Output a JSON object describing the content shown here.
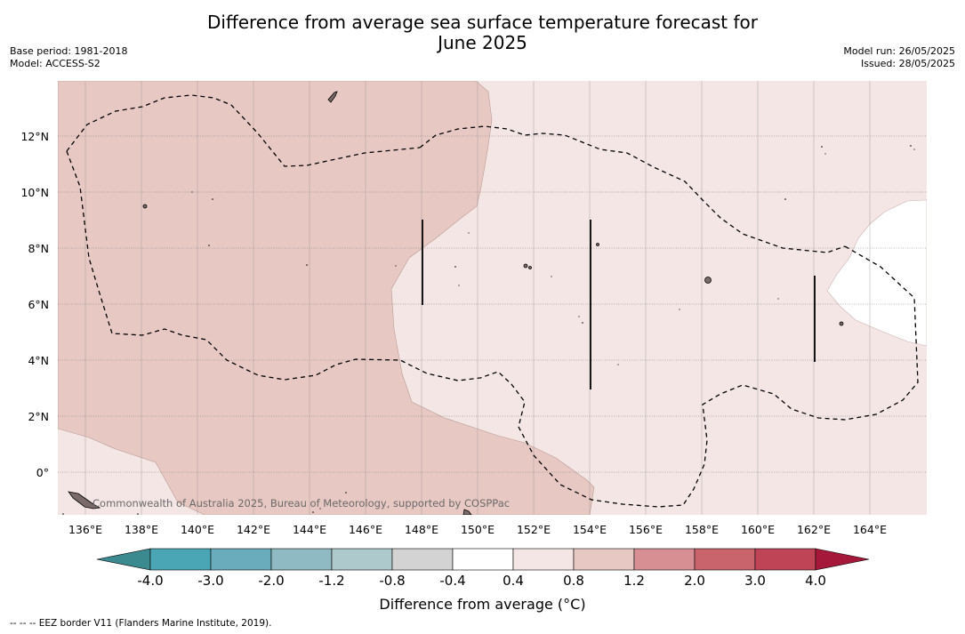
{
  "title": "Difference from average sea surface temperature forecast for June 2025",
  "title_line1": "Difference from average sea surface temperature forecast for",
  "title_line2": "June 2025",
  "meta_left": {
    "base_period": "Base period: 1981-2018",
    "model": "Model: ACCESS-S2"
  },
  "meta_right": {
    "model_run": "Model run: 26/05/2025",
    "issued": "Issued: 28/05/2025"
  },
  "map": {
    "lon_labels": [
      "136°E",
      "138°E",
      "140°E",
      "142°E",
      "144°E",
      "146°E",
      "148°E",
      "150°E",
      "152°E",
      "154°E",
      "156°E",
      "158°E",
      "160°E",
      "162°E",
      "164°E"
    ],
    "lat_labels": [
      "12°N",
      "10°N",
      "8°N",
      "6°N",
      "4°N",
      "2°N",
      "0°"
    ],
    "lon_range": [
      135,
      166
    ],
    "lat_range": [
      -1.5,
      14
    ],
    "watermark": "Commonwealth of Australia 2025, Bureau of Meteorology, supported by COSPPac",
    "colors": {
      "band_0p8_1p2": "#e8c8c3",
      "band_0p4_0p8": "#f4e6e4",
      "band_m0p4_0p4": "#ffffff"
    }
  },
  "colorbar": {
    "ticks": [
      "-4.0",
      "-3.0",
      "-2.0",
      "-1.2",
      "-0.8",
      "-0.4",
      "0.4",
      "0.8",
      "1.2",
      "2.0",
      "3.0",
      "4.0"
    ],
    "colors": [
      "#3a8a90",
      "#4aa5b5",
      "#6aacbc",
      "#8fb9c3",
      "#aec9cc",
      "#d3d3d3",
      "#ffffff",
      "#f4e6e4",
      "#e8c8c3",
      "#d88f94",
      "#c9636c",
      "#bf4556",
      "#a6183a"
    ],
    "label": "Difference from average (°C)"
  },
  "footnote": "--  --  -- EEZ border V11 (Flanders Marine Institute, 2019)."
}
